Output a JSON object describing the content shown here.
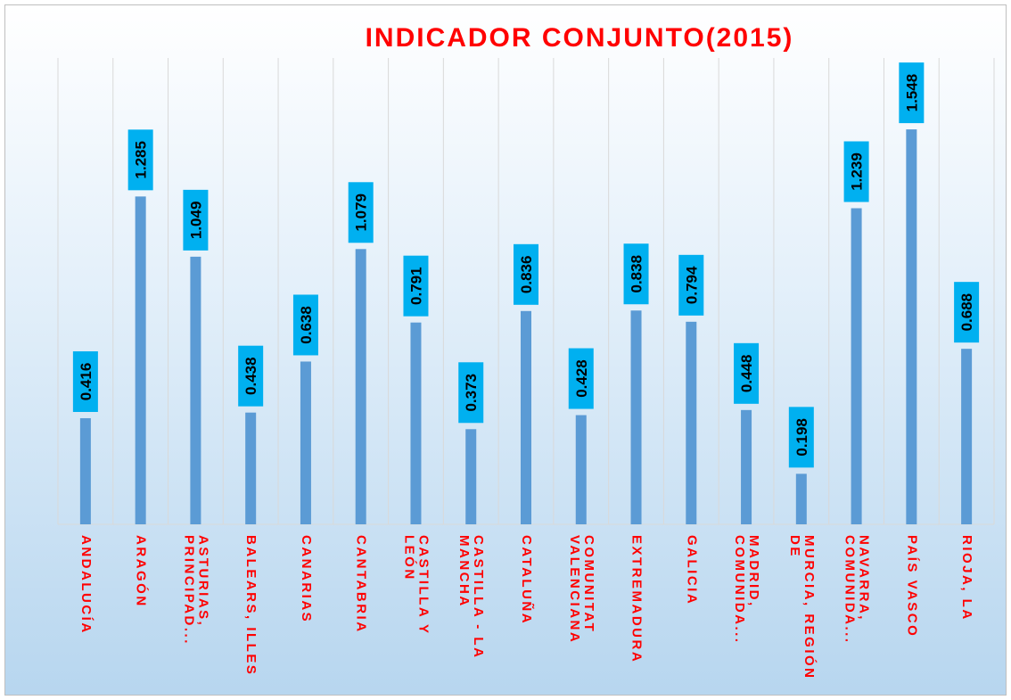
{
  "chart_data": {
    "type": "bar",
    "title": "INDICADOR CONJUNTO(2015)",
    "categories": [
      "ANDALUCÍA",
      "ARAGÓN",
      "ASTURIAS, PRINCIPAD...",
      "BALEARS, ILLES",
      "CANARIAS",
      "CANTABRIA",
      "CASTILLA Y LEÓN",
      "CASTILLA - LA MANCHA",
      "CATALUÑA",
      "COMUNITAT VALENCIANA",
      "EXTREMADURA",
      "GALICIA",
      "MADRID, COMUNIDA...",
      "MURCIA, REGIÓN DE",
      "NAVARRA, COMUNIDA...",
      "PAÍS VASCO",
      "RIOJA, LA"
    ],
    "values": [
      0.416,
      1.285,
      1.049,
      0.438,
      0.638,
      1.079,
      0.791,
      0.373,
      0.836,
      0.428,
      0.838,
      0.794,
      0.448,
      0.198,
      1.239,
      1.548,
      0.688
    ],
    "color": "#5b9bd5",
    "label_box_color": "#00b0f0",
    "title_color": "#ff0000",
    "category_color": "#ff0000",
    "ylim": [
      0,
      1.8
    ],
    "grid": true
  }
}
